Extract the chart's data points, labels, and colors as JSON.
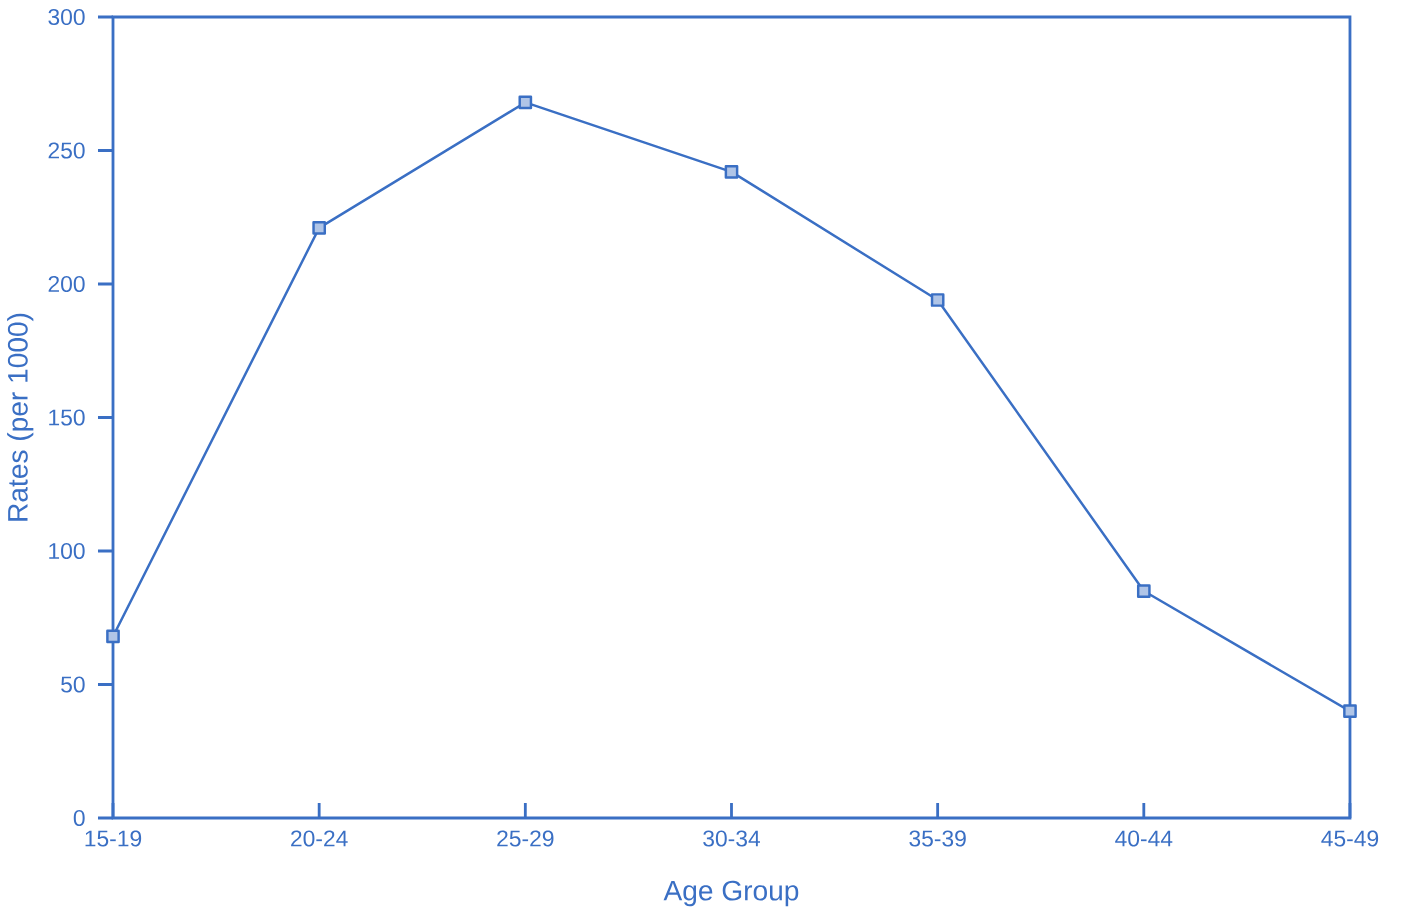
{
  "chart_data": {
    "type": "line",
    "xlabel": "Age Group",
    "ylabel": "Rates (per 1000)",
    "categories": [
      "15-19",
      "20-24",
      "25-29",
      "30-34",
      "35-39",
      "40-44",
      "45-49"
    ],
    "values": [
      68,
      221,
      268,
      242,
      194,
      85,
      40
    ],
    "color": "#3a6fc4",
    "marker": "square",
    "line_style": "solid",
    "grid": false,
    "ylim": [
      0,
      300
    ],
    "yticks": [
      0,
      50,
      100,
      150,
      200,
      250,
      300
    ]
  }
}
